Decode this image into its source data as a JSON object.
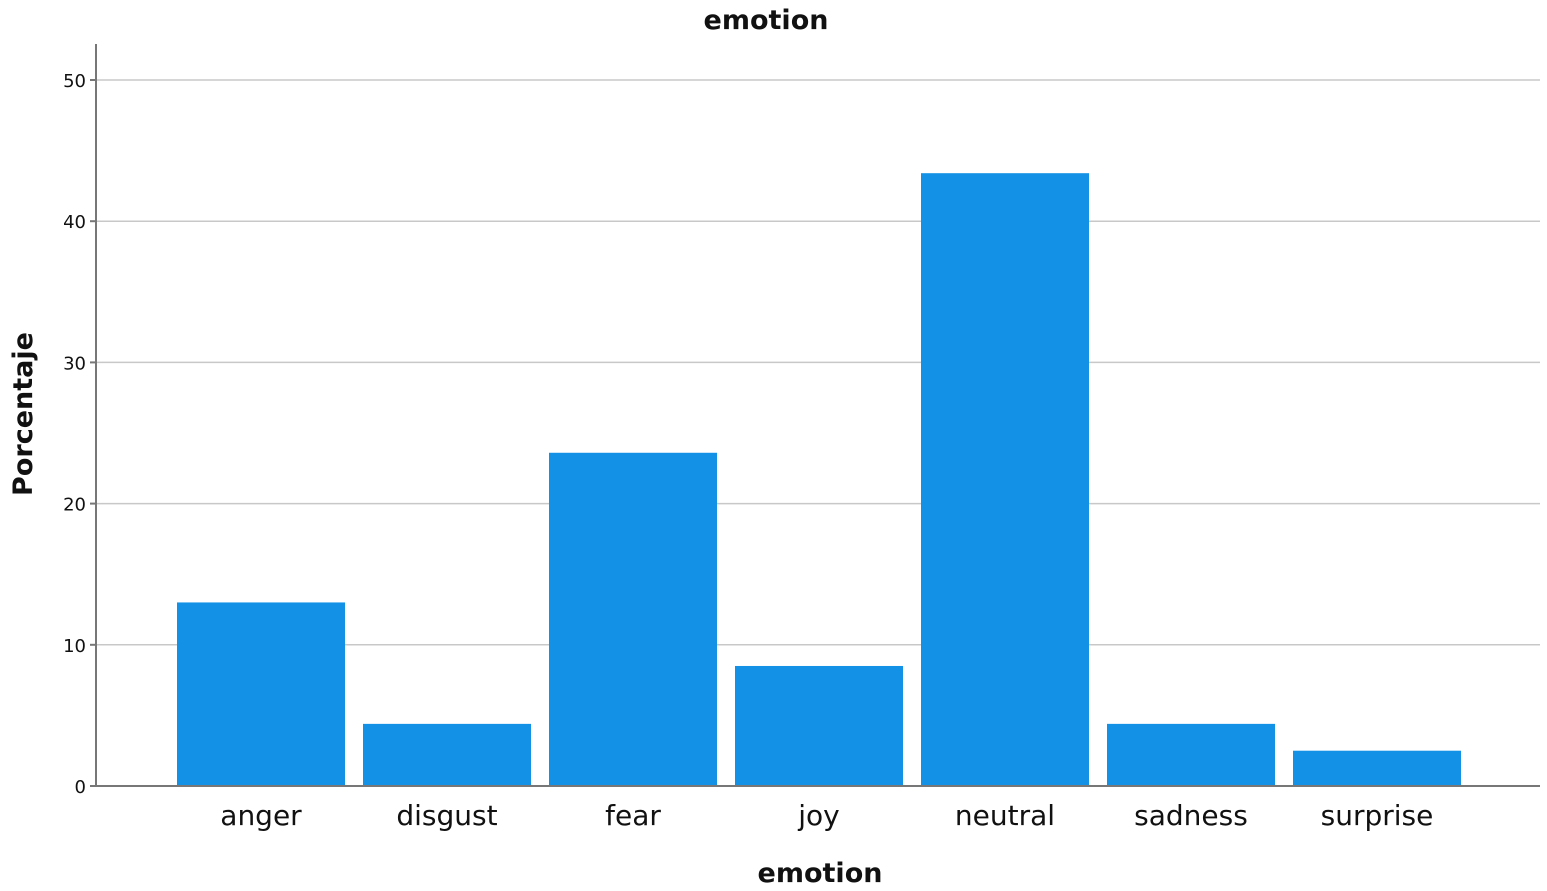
{
  "chart_data": {
    "type": "bar",
    "title": "emotion",
    "xlabel": "emotion",
    "ylabel": "Porcentaje",
    "categories": [
      "anger",
      "disgust",
      "fear",
      "joy",
      "neutral",
      "sadness",
      "surprise"
    ],
    "values": [
      13.0,
      4.4,
      23.6,
      8.5,
      43.4,
      4.4,
      2.5
    ],
    "ylim": [
      0,
      52
    ],
    "yticks": [
      "0",
      "10",
      "20",
      "30",
      "40",
      "50"
    ],
    "grid": true,
    "legend": "none",
    "bar_color": "#1391e6"
  }
}
